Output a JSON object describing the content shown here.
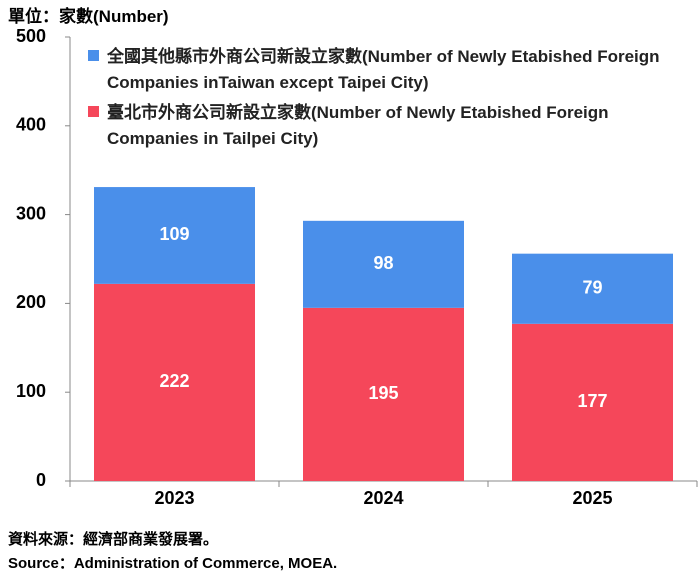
{
  "chart_data": {
    "type": "stacked-bar",
    "unit_label": "單位：家數(Number)",
    "categories": [
      "2023",
      "2024",
      "2025"
    ],
    "series": [
      {
        "name": "全國其他縣市外商公司新設立家數(Number of Newly Etabished Foreign Companies inTaiwan except Taipei City)",
        "color": "#4a8fea",
        "values": [
          109,
          98,
          79
        ]
      },
      {
        "name": "臺北市外商公司新設立家數(Number of Newly Etabished Foreign Companies in Tailpei City)",
        "color": "#f5475a",
        "values": [
          222,
          195,
          177
        ]
      }
    ],
    "ylim": [
      0,
      500
    ],
    "yticks": [
      0,
      100,
      200,
      300,
      400,
      500
    ],
    "source": [
      "資料來源：經濟部商業發展署。",
      "Source：Administration of Commerce, MOEA."
    ]
  }
}
